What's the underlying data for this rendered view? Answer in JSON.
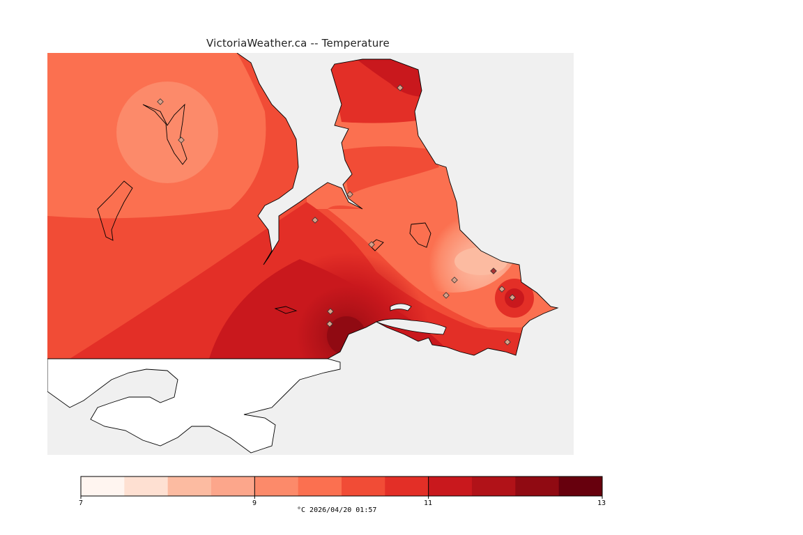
{
  "title": "VictoriaWeather.ca -- Temperature",
  "legend": {
    "min": 7,
    "max": 13,
    "tick_labels": [
      "7",
      "9",
      "11",
      "13"
    ],
    "caption": "°C  2026/04/20 01:57",
    "colors": [
      "#fff5f0",
      "#fee0d2",
      "#fcbba1",
      "#fca68b",
      "#fc8a6a",
      "#fb7050",
      "#f14c36",
      "#e32f27",
      "#c9181d",
      "#b11218",
      "#900a12",
      "#67000d"
    ]
  },
  "colors": {
    "water": "#f0f0f0",
    "land_outside": "#ffffff",
    "coastline": "#000000"
  },
  "stations_count_note": ""
}
